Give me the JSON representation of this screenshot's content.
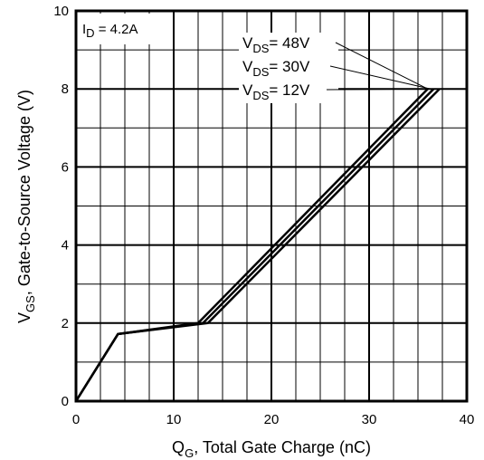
{
  "chart_data": {
    "type": "line",
    "title": "",
    "xlabel": {
      "main": "Q",
      "sub": "G",
      "rest": ", Total Gate Charge (nC)"
    },
    "ylabel": {
      "main": "V",
      "sub": "GS",
      "rest": ", Gate-to-Source Voltage (V)"
    },
    "xlim": [
      0,
      40
    ],
    "ylim": [
      0,
      10
    ],
    "xticks": [
      0,
      10,
      20,
      30,
      40
    ],
    "yticks": [
      0,
      2,
      4,
      6,
      8,
      10
    ],
    "grid": true,
    "annotation": {
      "main": "I",
      "sub": "D",
      "rest": " = 4.2A"
    },
    "series": [
      {
        "name_main": "V",
        "name_sub": "DS",
        "name_rest": "= 48V",
        "x": [
          0,
          4.3,
          13.5,
          37.2
        ],
        "y": [
          0,
          1.72,
          2.0,
          8.0
        ]
      },
      {
        "name_main": "V",
        "name_sub": "DS",
        "name_rest": "= 30V",
        "x": [
          0,
          4.3,
          13.0,
          36.6
        ],
        "y": [
          0,
          1.72,
          2.0,
          8.0
        ]
      },
      {
        "name_main": "V",
        "name_sub": "DS",
        "name_rest": "= 12V",
        "x": [
          0,
          4.3,
          12.5,
          36.0
        ],
        "y": [
          0,
          1.72,
          2.0,
          8.0
        ]
      }
    ],
    "line_color": "#000000",
    "grid_color": "#000000"
  }
}
